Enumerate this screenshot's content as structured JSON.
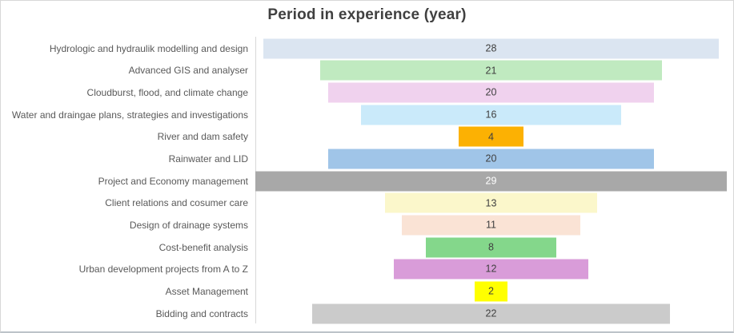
{
  "chart_data": {
    "type": "bar",
    "orientation": "horizontal",
    "layout_hint": "centered-funnel-bars, category labels right-aligned at axis, value labels centered inside bars, no gridlines, no legend",
    "title": "Period in experience (year)",
    "categories": [
      "Hydrologic and hydraulik modelling and design",
      "Advanced GIS and analyser",
      "Cloudburst, flood, and climate change",
      "Water and draingae plans, strategies and investigations",
      "River and dam safety",
      "Rainwater and LID",
      "Project and Economy management",
      "Client relations and cosumer care",
      "Design of drainage systems",
      "Cost-benefit analysis",
      "Urban development projects from A to Z",
      "Asset Management",
      "Bidding and contracts"
    ],
    "values": [
      28,
      21,
      20,
      16,
      4,
      20,
      29,
      13,
      11,
      8,
      12,
      2,
      22
    ],
    "bar_colors": [
      "#dbe5f1",
      "#c0eac0",
      "#f0d2ee",
      "#caeafa",
      "#fcb103",
      "#a0c5e8",
      "#a8a8a8",
      "#fbf7cb",
      "#fae3d5",
      "#84d78b",
      "#d99cd9",
      "#ffff00",
      "#cbcbcb"
    ],
    "value_label_colors": [
      "#404040",
      "#404040",
      "#404040",
      "#404040",
      "#404040",
      "#404040",
      "#ffffff",
      "#404040",
      "#404040",
      "#404040",
      "#404040",
      "#404040",
      "#404040"
    ],
    "xlim": [
      0,
      29
    ],
    "grid": false,
    "legend_position": "none",
    "title_color": "#404040",
    "category_label_color": "#595959",
    "axis_line_color": "#d9d9d9"
  }
}
